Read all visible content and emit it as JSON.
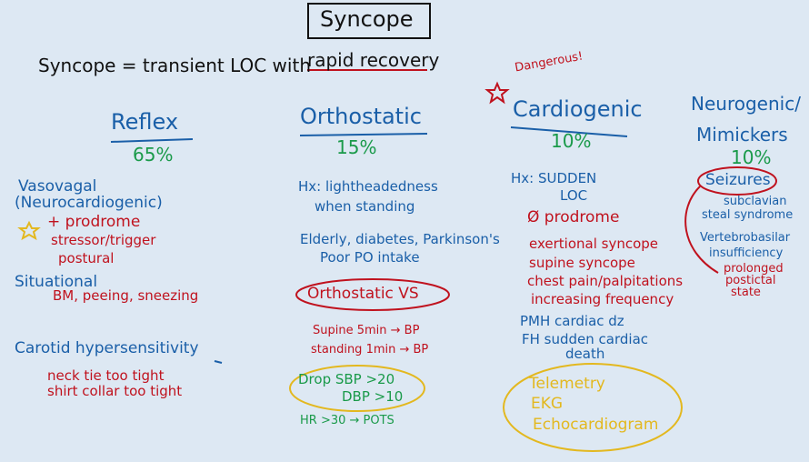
{
  "title": "Syncope",
  "definition": {
    "prefix": "Syncope = transient LOC with",
    "highlight": "rapid recovery"
  },
  "dangerous_note": "Dangerous!",
  "reflex": {
    "heading": "Reflex",
    "percent": "65%",
    "vasovagal": "Vasovagal",
    "neurocardiogenic": "(Neurocardiogenic)",
    "prodrome": "+ prodrome",
    "stressor": "stressor/trigger",
    "postural": "postural",
    "situational": "Situational",
    "situational_examples": "BM, peeing, sneezing",
    "carotid": "Carotid hypersensitivity",
    "necktie": "neck tie too tight",
    "shirt_collar": "shirt collar too tight"
  },
  "orthostatic": {
    "heading": "Orthostatic",
    "percent": "15%",
    "hx_line1": "Hx: lightheadedness",
    "hx_line2": "when standing",
    "risk_line1": "Elderly, diabetes, Parkinson's",
    "risk_line2": "Poor PO intake",
    "vs_label": "Orthostatic VS",
    "supine": "Supine 5min → BP",
    "standing": "standing 1min → BP",
    "drop_sbp": "Drop SBP >20",
    "drop_dbp": "DBP >10",
    "hr": "HR >30 → POTS"
  },
  "cardiogenic": {
    "heading": "Cardiogenic",
    "percent": "10%",
    "hx_line1": "Hx: SUDDEN",
    "hx_line2": "LOC",
    "no_prodrome": "Ø prodrome",
    "items": [
      "exertional syncope",
      "supine syncope",
      "chest pain/palpitations",
      "increasing frequency"
    ],
    "pmh": "PMH cardiac dz",
    "fh_line1": "FH sudden cardiac",
    "fh_line2": "death",
    "workup": [
      "Telemetry",
      "EKG",
      "Echocardiogram"
    ]
  },
  "neurogenic": {
    "heading_line1": "Neurogenic/",
    "heading_line2": "Mimickers",
    "percent": "10%",
    "seizures": "Seizures",
    "subclavian_line1": "subclavian",
    "subclavian_line2": "steal syndrome",
    "vb_line1": "Vertebrobasilar",
    "vb_line2": "insufficiency",
    "postictal_line1": "prolonged",
    "postictal_line2": "postictal",
    "postictal_line3": "state"
  },
  "colors": {
    "blue": "#1a5fa8",
    "red": "#c0121e",
    "green": "#1a9a4a",
    "yellow": "#e3b81f",
    "black": "#111111"
  }
}
